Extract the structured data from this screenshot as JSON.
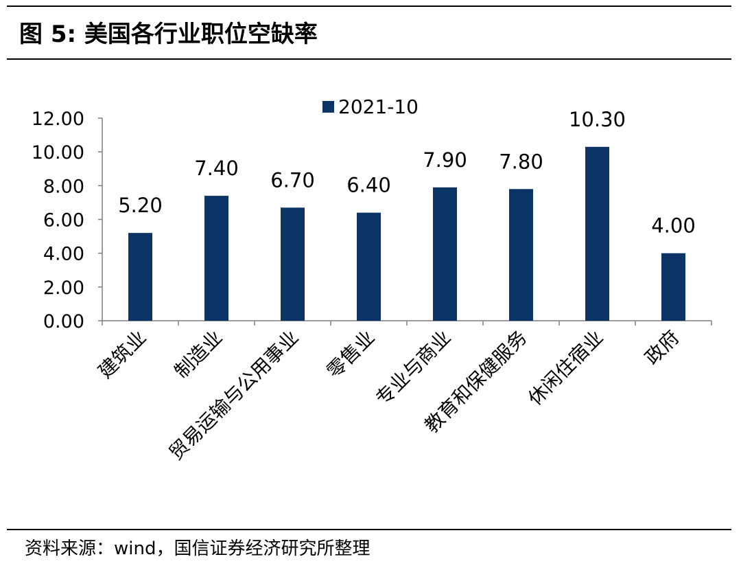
{
  "figure": {
    "title": "图 5:  美国各行业职位空缺率",
    "source": "资料来源：wind，国信证券经济研究所整理"
  },
  "chart_data": {
    "type": "bar",
    "title": "",
    "xlabel": "",
    "ylabel": "",
    "categories": [
      "建筑业",
      "制造业",
      "贸易运输与公用事业",
      "零售业",
      "专业与商业",
      "教育和保健服务",
      "休闲住宿业",
      "政府"
    ],
    "series": [
      {
        "name": "2021-10",
        "values": [
          5.2,
          7.4,
          6.7,
          6.4,
          7.9,
          7.8,
          10.3,
          4.0
        ],
        "color": "#0b3366"
      }
    ],
    "data_labels": [
      "5.20",
      "7.40",
      "6.70",
      "6.40",
      "7.90",
      "7.80",
      "10.30",
      "4.00"
    ],
    "ylim": [
      0,
      12
    ],
    "yticks": [
      "0.00",
      "2.00",
      "4.00",
      "6.00",
      "8.00",
      "10.00",
      "12.00"
    ],
    "grid": false,
    "legend": "top-center"
  }
}
